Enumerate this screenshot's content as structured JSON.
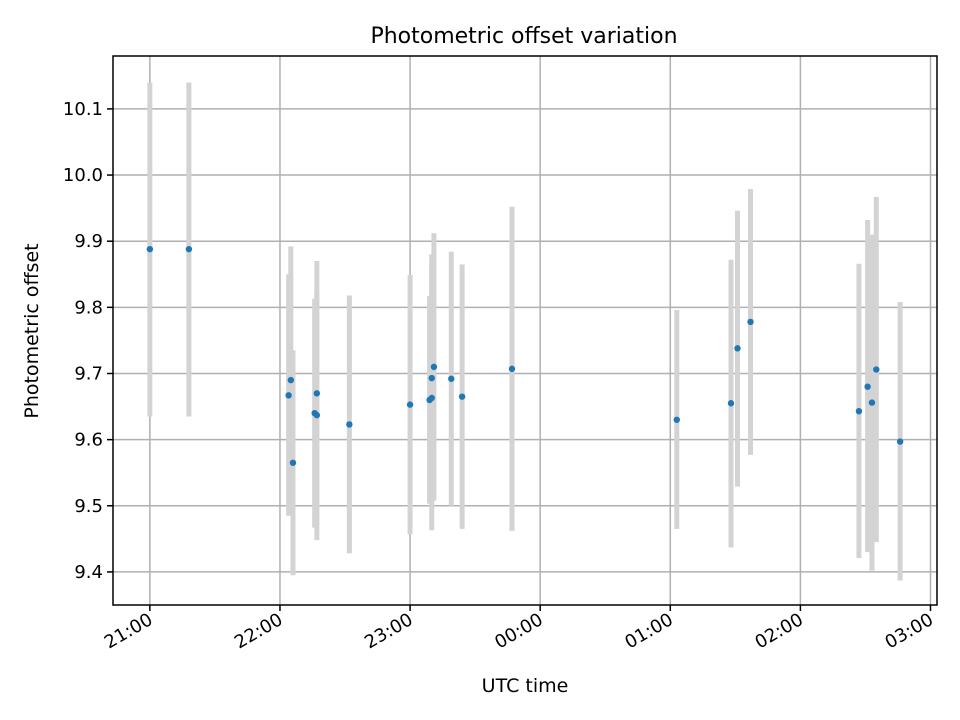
{
  "chart_data": {
    "type": "scatter",
    "title": "Photometric offset variation",
    "xlabel": "UTC time",
    "ylabel": "Photometric offset",
    "x_axis": {
      "scale": "time",
      "ticks": [
        "21:00",
        "22:00",
        "23:00",
        "00:00",
        "01:00",
        "02:00",
        "03:00"
      ],
      "range": [
        "20:43",
        "03:03"
      ],
      "tick_label_rotation": "30deg"
    },
    "y_axis": {
      "ticks": [
        "9.4",
        "9.5",
        "9.6",
        "9.7",
        "9.8",
        "9.9",
        "10.0",
        "10.1"
      ],
      "range": [
        9.35,
        10.18
      ]
    },
    "grid": true,
    "colors": {
      "point": "#1f77b4",
      "errorbar": "#d3d3d3",
      "grid": "#b0b0b0"
    },
    "series": [
      {
        "points": [
          {
            "time": "21:00",
            "y": 9.888,
            "ylo": 9.635,
            "yhi": 10.14
          },
          {
            "time": "21:18",
            "y": 9.888,
            "ylo": 9.635,
            "yhi": 10.14
          },
          {
            "time": "22:04",
            "y": 9.667,
            "ylo": 9.485,
            "yhi": 9.85
          },
          {
            "time": "22:05",
            "y": 9.69,
            "ylo": 9.488,
            "yhi": 9.892
          },
          {
            "time": "22:06",
            "y": 9.565,
            "ylo": 9.395,
            "yhi": 9.735
          },
          {
            "time": "22:16",
            "y": 9.64,
            "ylo": 9.467,
            "yhi": 9.813
          },
          {
            "time": "22:17",
            "y": 9.637,
            "ylo": 9.448,
            "yhi": 9.826
          },
          {
            "time": "22:17",
            "y": 9.67,
            "ylo": 9.47,
            "yhi": 9.87
          },
          {
            "time": "22:32",
            "y": 9.623,
            "ylo": 9.428,
            "yhi": 9.818
          },
          {
            "time": "23:00",
            "y": 9.653,
            "ylo": 9.457,
            "yhi": 9.849
          },
          {
            "time": "23:09",
            "y": 9.66,
            "ylo": 9.503,
            "yhi": 9.817
          },
          {
            "time": "23:10",
            "y": 9.663,
            "ylo": 9.463,
            "yhi": 9.865
          },
          {
            "time": "23:10",
            "y": 9.693,
            "ylo": 9.507,
            "yhi": 9.88
          },
          {
            "time": "23:11",
            "y": 9.71,
            "ylo": 9.508,
            "yhi": 9.912
          },
          {
            "time": "23:19",
            "y": 9.692,
            "ylo": 9.5,
            "yhi": 9.884
          },
          {
            "time": "23:24",
            "y": 9.665,
            "ylo": 9.465,
            "yhi": 9.865
          },
          {
            "time": "23:47",
            "y": 9.707,
            "ylo": 9.462,
            "yhi": 9.952
          },
          {
            "time": "01:03",
            "y": 9.63,
            "ylo": 9.465,
            "yhi": 9.796
          },
          {
            "time": "01:28",
            "y": 9.655,
            "ylo": 9.437,
            "yhi": 9.872
          },
          {
            "time": "01:31",
            "y": 9.738,
            "ylo": 9.529,
            "yhi": 9.946
          },
          {
            "time": "01:37",
            "y": 9.778,
            "ylo": 9.577,
            "yhi": 9.979
          },
          {
            "time": "02:27",
            "y": 9.643,
            "ylo": 9.421,
            "yhi": 9.866
          },
          {
            "time": "02:31",
            "y": 9.68,
            "ylo": 9.43,
            "yhi": 9.932
          },
          {
            "time": "02:33",
            "y": 9.656,
            "ylo": 9.402,
            "yhi": 9.91
          },
          {
            "time": "02:35",
            "y": 9.706,
            "ylo": 9.445,
            "yhi": 9.967
          },
          {
            "time": "02:46",
            "y": 9.597,
            "ylo": 9.387,
            "yhi": 9.808
          }
        ]
      }
    ]
  }
}
